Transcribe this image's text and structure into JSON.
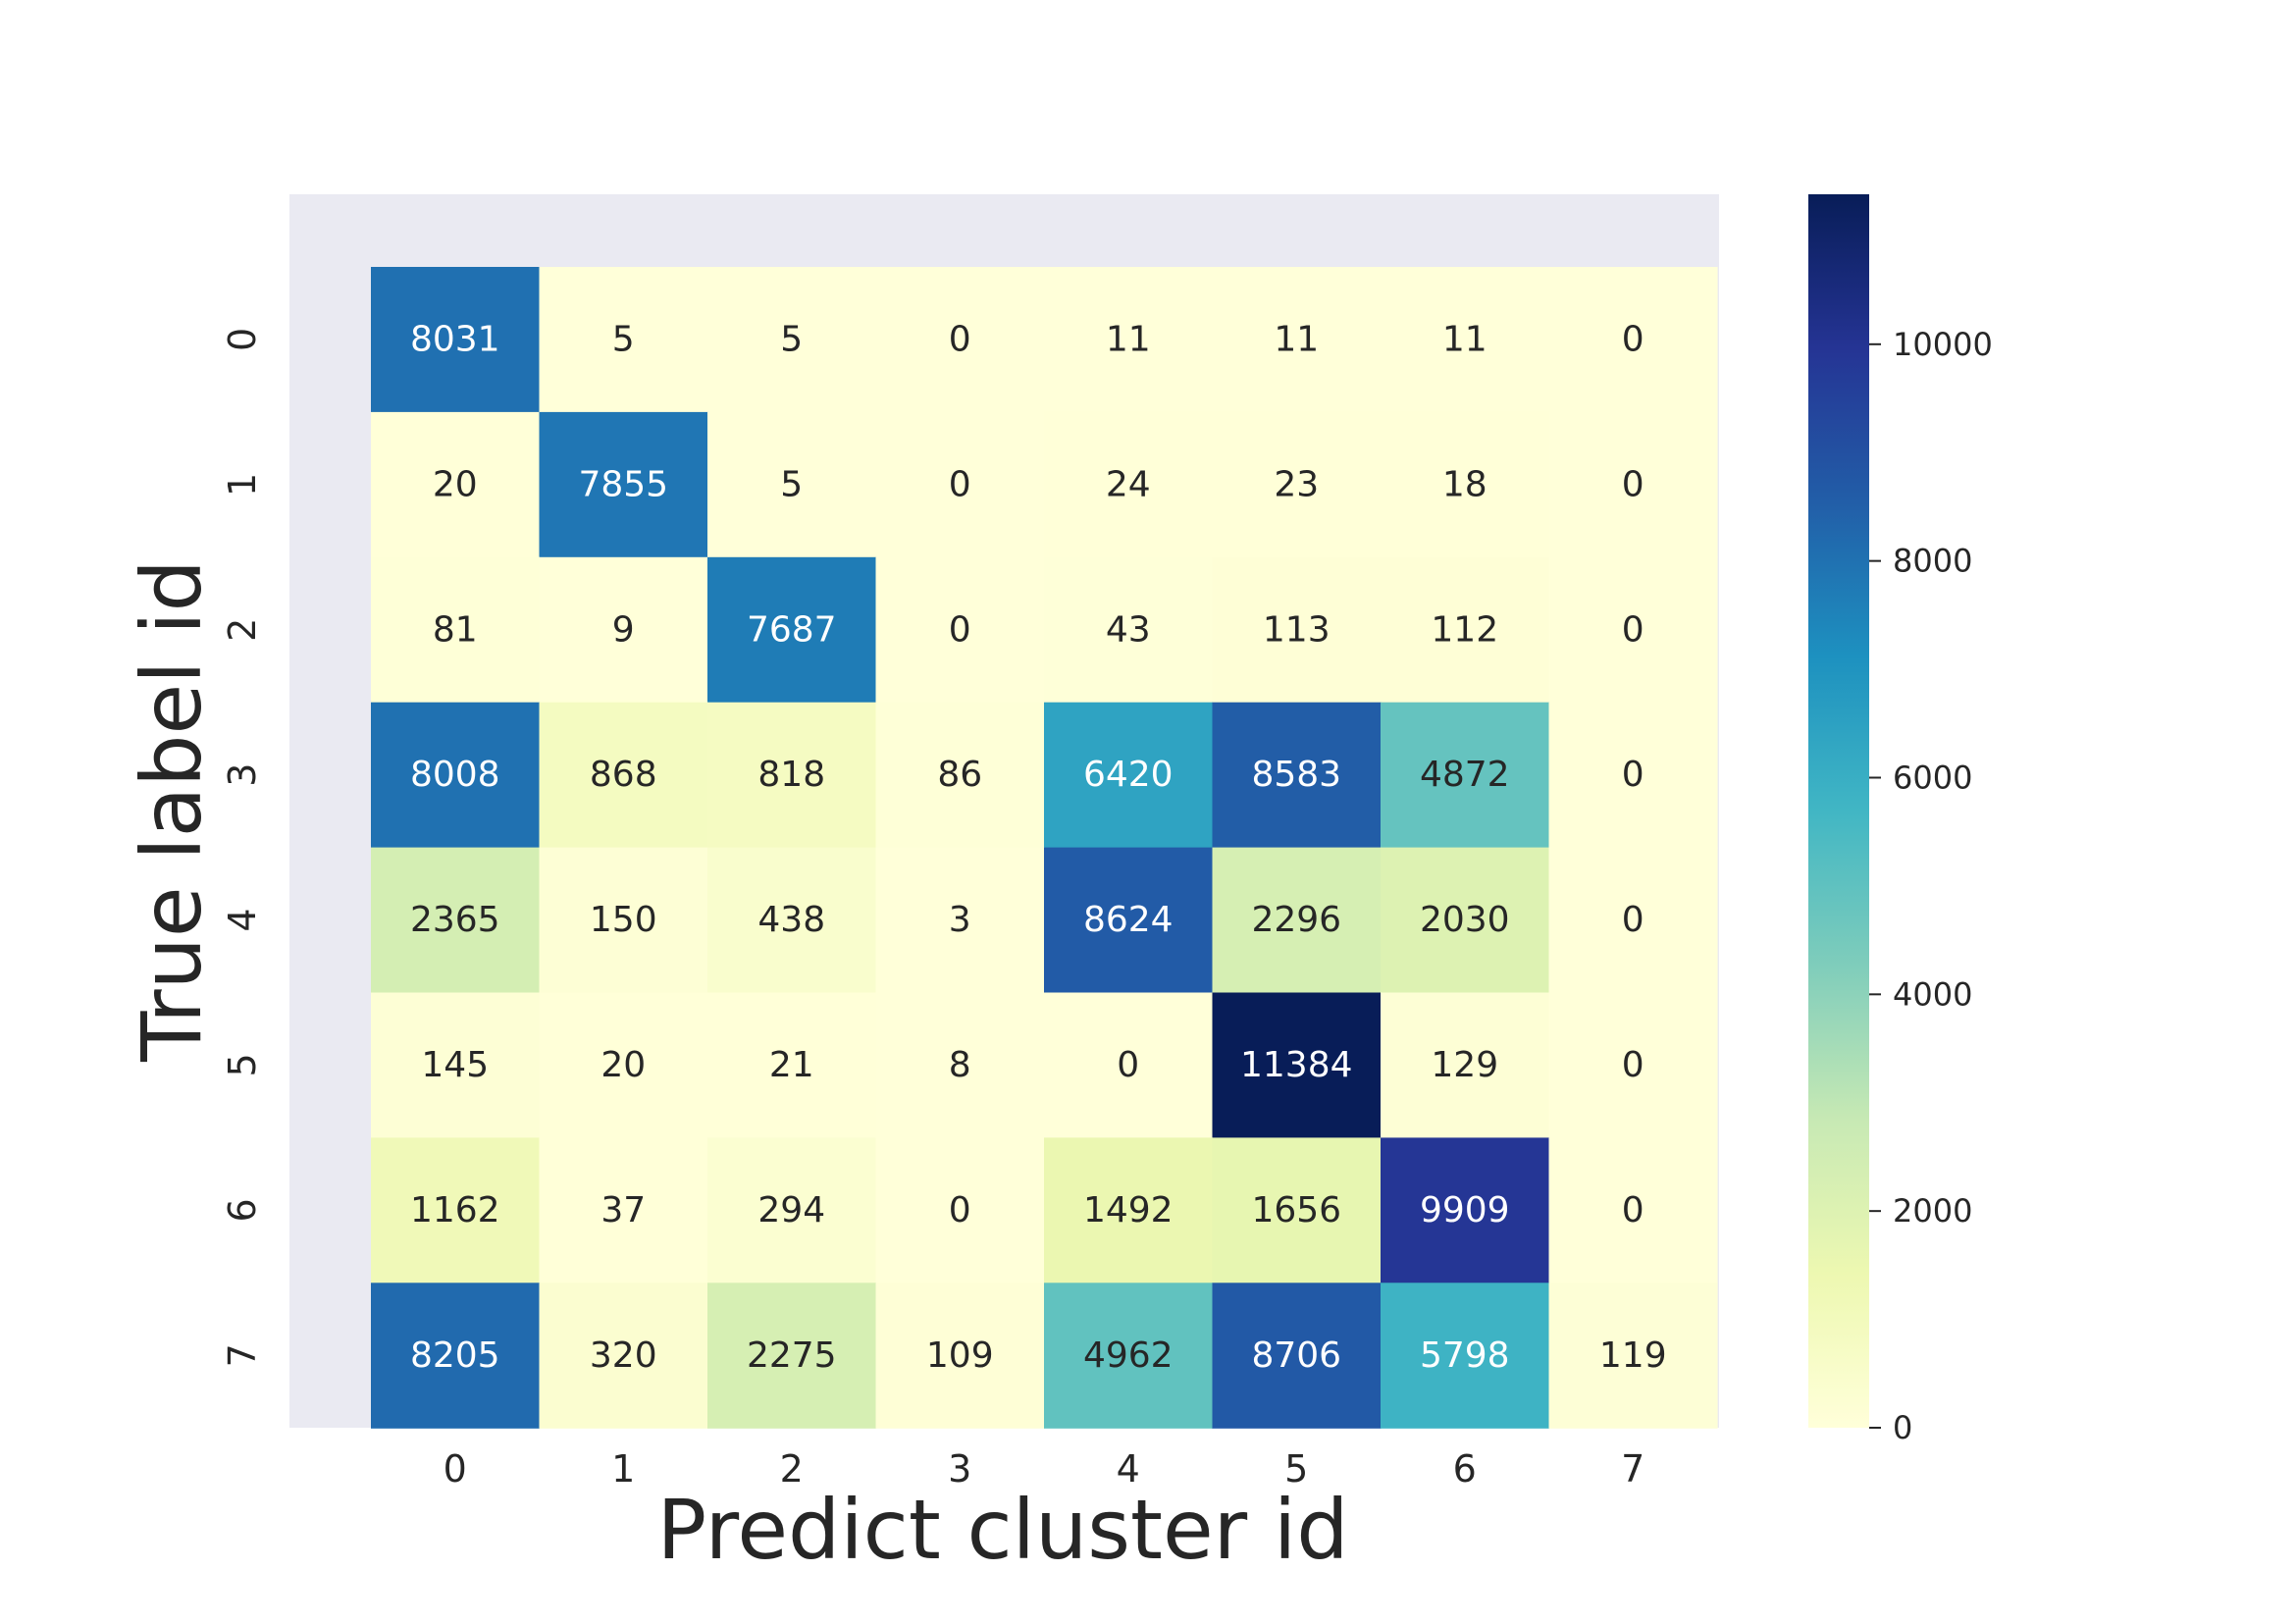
{
  "chart_data": {
    "type": "heatmap",
    "title": "",
    "xlabel": "Predict cluster id",
    "ylabel": "True label id",
    "x_categories": [
      "0",
      "1",
      "2",
      "3",
      "4",
      "5",
      "6",
      "7"
    ],
    "y_categories": [
      "0",
      "1",
      "2",
      "3",
      "4",
      "5",
      "6",
      "7"
    ],
    "values": [
      [
        8031,
        5,
        5,
        0,
        11,
        11,
        11,
        0
      ],
      [
        20,
        7855,
        5,
        0,
        24,
        23,
        18,
        0
      ],
      [
        81,
        9,
        7687,
        0,
        43,
        113,
        112,
        0
      ],
      [
        8008,
        868,
        818,
        86,
        6420,
        8583,
        4872,
        0
      ],
      [
        2365,
        150,
        438,
        3,
        8624,
        2296,
        2030,
        0
      ],
      [
        145,
        20,
        21,
        8,
        0,
        11384,
        129,
        0
      ],
      [
        1162,
        37,
        294,
        0,
        1492,
        1656,
        9909,
        0
      ],
      [
        8205,
        320,
        2275,
        109,
        4962,
        8706,
        5798,
        119
      ]
    ],
    "colormap": "YlGnBu",
    "colorbar": {
      "vmin": 0,
      "vmax": 11384,
      "ticks": [
        0,
        2000,
        4000,
        6000,
        8000,
        10000
      ],
      "tick_labels": [
        "0",
        "2000",
        "4000",
        "6000",
        "8000",
        "10000"
      ]
    },
    "colors": {
      "background_panel": "#eaeaf2",
      "text_dark": "#262626",
      "text_light": "#ffffff"
    }
  }
}
